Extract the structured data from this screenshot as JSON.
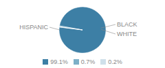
{
  "chart_data": {
    "type": "pie",
    "categories": [
      "HISPANIC",
      "BLACK",
      "WHITE"
    ],
    "values": [
      99.1,
      0.7,
      0.2
    ],
    "value_labels": [
      "99.1%",
      "0.7%",
      "0.2%"
    ],
    "colors": [
      "#3d7fa5",
      "#7db0c8",
      "#cfe0ea"
    ],
    "legend": "bottom"
  }
}
